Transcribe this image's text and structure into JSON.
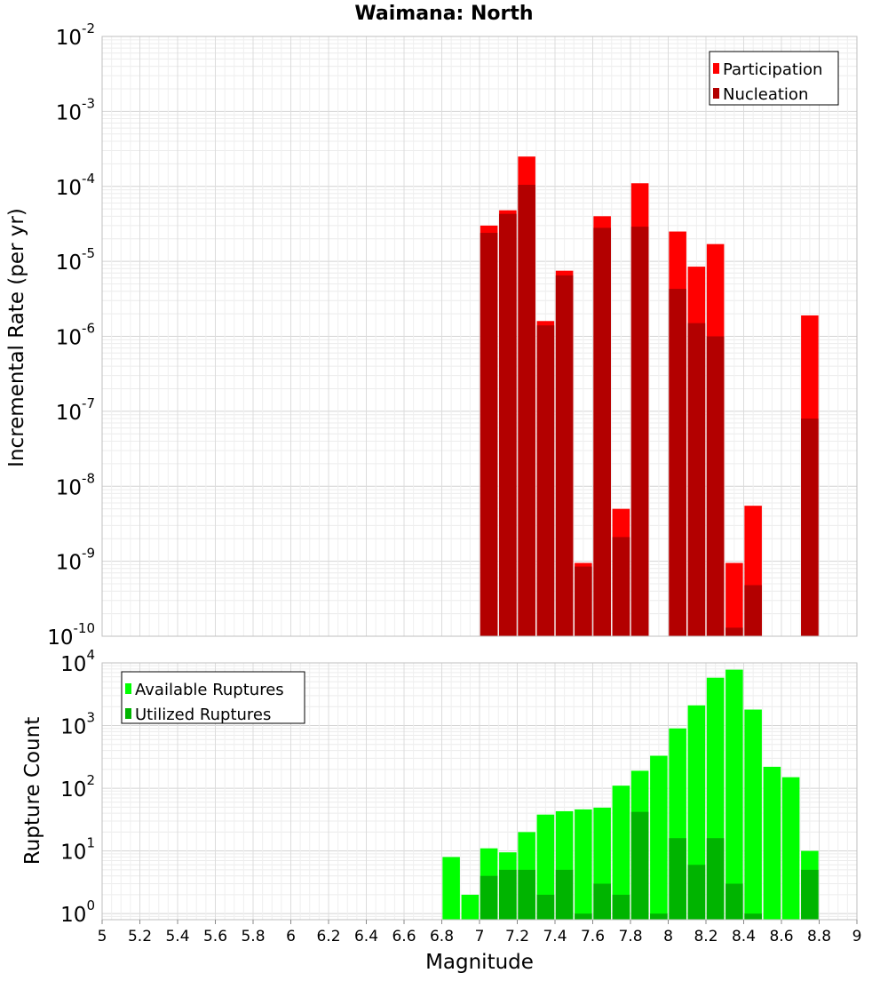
{
  "chart_data": [
    {
      "type": "bar",
      "title": "Waimana: North",
      "xlabel": "",
      "ylabel": "Incremental Rate (per yr)",
      "yscale": "log",
      "ylim": [
        1e-10,
        0.01
      ],
      "xlim": [
        5,
        9
      ],
      "bar_width": 0.1,
      "legend_position": "top-right",
      "grid": true,
      "y_ticks": [
        {
          "base": "10",
          "exp": "-10",
          "value": 1e-10
        },
        {
          "base": "10",
          "exp": "-9",
          "value": 1e-09
        },
        {
          "base": "10",
          "exp": "-8",
          "value": 1e-08
        },
        {
          "base": "10",
          "exp": "-7",
          "value": 1e-07
        },
        {
          "base": "10",
          "exp": "-6",
          "value": 1e-06
        },
        {
          "base": "10",
          "exp": "-5",
          "value": 1e-05
        },
        {
          "base": "10",
          "exp": "-4",
          "value": 0.0001
        },
        {
          "base": "10",
          "exp": "-3",
          "value": 0.001
        },
        {
          "base": "10",
          "exp": "-2",
          "value": 0.01
        }
      ],
      "series": [
        {
          "name": "Participation",
          "color": "#ff0000",
          "points": [
            {
              "x": 7.05,
              "y": 3e-05
            },
            {
              "x": 7.15,
              "y": 4.8e-05
            },
            {
              "x": 7.25,
              "y": 0.00025
            },
            {
              "x": 7.35,
              "y": 1.6e-06
            },
            {
              "x": 7.45,
              "y": 7.5e-06
            },
            {
              "x": 7.55,
              "y": 9.5e-10
            },
            {
              "x": 7.65,
              "y": 4e-05
            },
            {
              "x": 7.75,
              "y": 5e-09
            },
            {
              "x": 7.85,
              "y": 0.00011
            },
            {
              "x": 8.05,
              "y": 2.5e-05
            },
            {
              "x": 8.15,
              "y": 8.5e-06
            },
            {
              "x": 8.25,
              "y": 1.7e-05
            },
            {
              "x": 8.35,
              "y": 9.5e-10
            },
            {
              "x": 8.45,
              "y": 5.5e-09
            },
            {
              "x": 8.75,
              "y": 1.9e-06
            }
          ]
        },
        {
          "name": "Nucleation",
          "color": "#b30000",
          "points": [
            {
              "x": 7.05,
              "y": 2.4e-05
            },
            {
              "x": 7.15,
              "y": 4.3e-05
            },
            {
              "x": 7.25,
              "y": 0.000105
            },
            {
              "x": 7.35,
              "y": 1.4e-06
            },
            {
              "x": 7.45,
              "y": 6.5e-06
            },
            {
              "x": 7.55,
              "y": 8.5e-10
            },
            {
              "x": 7.65,
              "y": 2.8e-05
            },
            {
              "x": 7.75,
              "y": 2.1e-09
            },
            {
              "x": 7.85,
              "y": 2.9e-05
            },
            {
              "x": 8.05,
              "y": 4.3e-06
            },
            {
              "x": 8.15,
              "y": 1.5e-06
            },
            {
              "x": 8.25,
              "y": 1e-06
            },
            {
              "x": 8.35,
              "y": 1.3e-10
            },
            {
              "x": 8.45,
              "y": 4.8e-10
            },
            {
              "x": 8.75,
              "y": 8e-08
            }
          ]
        }
      ]
    },
    {
      "type": "bar",
      "title": "",
      "xlabel": "Magnitude",
      "ylabel": "Rupture Count",
      "yscale": "log",
      "ylim": [
        0.8,
        10000
      ],
      "xlim": [
        5,
        9
      ],
      "bar_width": 0.1,
      "legend_position": "top-left",
      "grid": true,
      "x_tick_labels": [
        "5",
        "5.2",
        "5.4",
        "5.6",
        "5.8",
        "6",
        "6.2",
        "6.4",
        "6.6",
        "6.8",
        "7",
        "7.2",
        "7.4",
        "7.6",
        "7.8",
        "8",
        "8.2",
        "8.4",
        "8.6",
        "8.8",
        "9"
      ],
      "y_ticks": [
        {
          "base": "10",
          "exp": "0",
          "value": 1
        },
        {
          "base": "10",
          "exp": "1",
          "value": 10
        },
        {
          "base": "10",
          "exp": "2",
          "value": 100
        },
        {
          "base": "10",
          "exp": "3",
          "value": 1000
        },
        {
          "base": "10",
          "exp": "4",
          "value": 10000
        }
      ],
      "series": [
        {
          "name": "Available Ruptures",
          "color": "#00ff00",
          "points": [
            {
              "x": 6.85,
              "y": 8
            },
            {
              "x": 6.95,
              "y": 2
            },
            {
              "x": 7.05,
              "y": 11
            },
            {
              "x": 7.15,
              "y": 9.5
            },
            {
              "x": 7.25,
              "y": 20
            },
            {
              "x": 7.35,
              "y": 38
            },
            {
              "x": 7.45,
              "y": 43
            },
            {
              "x": 7.55,
              "y": 46
            },
            {
              "x": 7.65,
              "y": 49
            },
            {
              "x": 7.75,
              "y": 110
            },
            {
              "x": 7.85,
              "y": 190
            },
            {
              "x": 7.95,
              "y": 330
            },
            {
              "x": 8.05,
              "y": 900
            },
            {
              "x": 8.15,
              "y": 2100
            },
            {
              "x": 8.25,
              "y": 5800
            },
            {
              "x": 8.35,
              "y": 7800
            },
            {
              "x": 8.45,
              "y": 1800
            },
            {
              "x": 8.55,
              "y": 220
            },
            {
              "x": 8.65,
              "y": 150
            },
            {
              "x": 8.75,
              "y": 10
            }
          ]
        },
        {
          "name": "Utilized Ruptures",
          "color": "#00b400",
          "points": [
            {
              "x": 7.05,
              "y": 4
            },
            {
              "x": 7.15,
              "y": 5
            },
            {
              "x": 7.25,
              "y": 5
            },
            {
              "x": 7.35,
              "y": 2
            },
            {
              "x": 7.45,
              "y": 5
            },
            {
              "x": 7.55,
              "y": 1
            },
            {
              "x": 7.65,
              "y": 3
            },
            {
              "x": 7.75,
              "y": 2
            },
            {
              "x": 7.85,
              "y": 42
            },
            {
              "x": 7.95,
              "y": 1
            },
            {
              "x": 8.05,
              "y": 16
            },
            {
              "x": 8.15,
              "y": 6
            },
            {
              "x": 8.25,
              "y": 16
            },
            {
              "x": 8.35,
              "y": 3
            },
            {
              "x": 8.45,
              "y": 1
            },
            {
              "x": 8.75,
              "y": 5
            }
          ]
        }
      ]
    }
  ]
}
